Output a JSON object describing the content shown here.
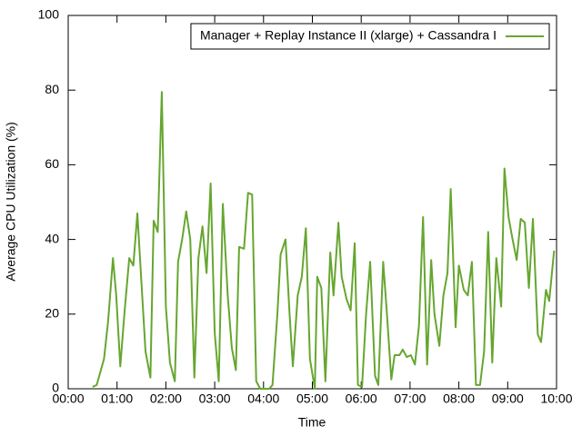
{
  "chart_data": {
    "type": "line",
    "x_label": "Time",
    "y_label": "Average CPU Utilization (%)",
    "xlim": [
      0,
      600
    ],
    "ylim": [
      0,
      100
    ],
    "xticks": [
      {
        "value": 0,
        "label": "00:00"
      },
      {
        "value": 60,
        "label": "01:00"
      },
      {
        "value": 120,
        "label": "02:00"
      },
      {
        "value": 180,
        "label": "03:00"
      },
      {
        "value": 240,
        "label": "04:00"
      },
      {
        "value": 300,
        "label": "05:00"
      },
      {
        "value": 360,
        "label": "06:00"
      },
      {
        "value": 420,
        "label": "07:00"
      },
      {
        "value": 480,
        "label": "08:00"
      },
      {
        "value": 540,
        "label": "09:00"
      },
      {
        "value": 600,
        "label": "10:00"
      }
    ],
    "yticks": [
      0,
      20,
      40,
      60,
      80,
      100
    ],
    "legend": "top-right",
    "series": [
      {
        "name": "Manager + Replay Instance II (xlarge) + Cassandra I",
        "color": "#66a630",
        "x": [
          30,
          35,
          44,
          49,
          55,
          59,
          64,
          69,
          75,
          80,
          85,
          89,
          95,
          101,
          105,
          110,
          115,
          120,
          125,
          131,
          135,
          140,
          145,
          150,
          155,
          160,
          165,
          170,
          175,
          180,
          185,
          190,
          196,
          201,
          206,
          210,
          216,
          221,
          226,
          231,
          236,
          241,
          247,
          251,
          257,
          261,
          267,
          272,
          276,
          282,
          287,
          292,
          297,
          303,
          306,
          311,
          316,
          322,
          326,
          332,
          336,
          342,
          347,
          352,
          356,
          361,
          366,
          371,
          377,
          381,
          387,
          391,
          397,
          401,
          407,
          411,
          416,
          421,
          426,
          431,
          436,
          441,
          446,
          450,
          456,
          461,
          466,
          470,
          476,
          480,
          486,
          491,
          496,
          501,
          506,
          511,
          516,
          521,
          526,
          532,
          536,
          541,
          546,
          551,
          556,
          561,
          566,
          571,
          577,
          581,
          587,
          591,
          597
        ],
        "values": [
          0.5,
          1,
          8,
          18,
          35,
          25,
          6,
          20,
          35,
          33,
          47,
          32,
          10,
          3,
          45,
          42,
          79.5,
          22,
          7,
          2,
          34,
          40,
          47.5,
          40,
          3,
          35,
          43.5,
          31,
          55,
          15,
          2,
          49.5,
          25,
          11,
          5,
          38,
          37.5,
          52.5,
          52,
          2,
          0,
          0,
          0,
          1,
          20,
          36,
          40,
          20,
          6,
          25,
          30,
          43,
          8,
          0,
          30,
          27,
          2,
          36.5,
          25,
          44.5,
          30,
          24,
          21,
          39,
          1,
          0.5,
          20,
          34,
          3.5,
          1,
          34,
          22,
          2.5,
          9,
          9,
          10.5,
          8.5,
          9,
          6.5,
          17,
          46,
          6.5,
          34.5,
          20,
          11.5,
          25,
          31,
          53.5,
          16.5,
          33,
          26.5,
          25,
          34,
          1,
          1,
          10,
          42,
          7,
          35,
          22,
          59,
          46,
          40,
          34.5,
          45.5,
          44.5,
          27,
          45.5,
          14.5,
          12.5,
          26.5,
          23.5,
          37
        ]
      }
    ]
  }
}
